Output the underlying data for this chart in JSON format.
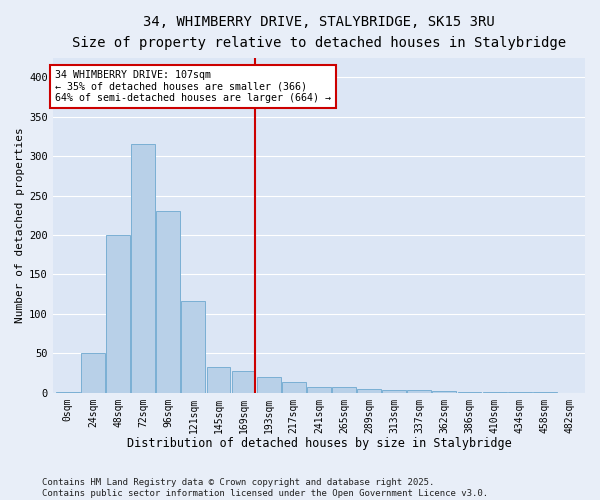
{
  "title_line1": "34, WHIMBERRY DRIVE, STALYBRIDGE, SK15 3RU",
  "title_line2": "Size of property relative to detached houses in Stalybridge",
  "xlabel": "Distribution of detached houses by size in Stalybridge",
  "ylabel": "Number of detached properties",
  "bar_color": "#b8d0e8",
  "bar_edge_color": "#7aafd4",
  "background_color": "#dce6f5",
  "grid_color": "#ffffff",
  "annotation_box_color": "#cc0000",
  "annotation_text": "34 WHIMBERRY DRIVE: 107sqm\n← 35% of detached houses are smaller (366)\n64% of semi-detached houses are larger (664) →",
  "vline_color": "#cc0000",
  "vline_x_bin": 4,
  "categories": [
    "0sqm",
    "24sqm",
    "48sqm",
    "72sqm",
    "96sqm",
    "121sqm",
    "145sqm",
    "169sqm",
    "193sqm",
    "217sqm",
    "241sqm",
    "265sqm",
    "289sqm",
    "313sqm",
    "337sqm",
    "362sqm",
    "386sqm",
    "410sqm",
    "434sqm",
    "458sqm",
    "482sqm"
  ],
  "bin_edges": [
    0,
    24,
    48,
    72,
    96,
    121,
    145,
    169,
    193,
    217,
    241,
    265,
    289,
    313,
    337,
    362,
    386,
    410,
    434,
    458,
    482,
    506
  ],
  "values": [
    1,
    51,
    200,
    315,
    230,
    116,
    32,
    28,
    20,
    13,
    7,
    7,
    5,
    4,
    3,
    2,
    1,
    1,
    1,
    1,
    0
  ],
  "ylim": [
    0,
    425
  ],
  "yticks": [
    0,
    50,
    100,
    150,
    200,
    250,
    300,
    350,
    400
  ],
  "footnote_line1": "Contains HM Land Registry data © Crown copyright and database right 2025.",
  "footnote_line2": "Contains public sector information licensed under the Open Government Licence v3.0.",
  "fig_width": 6.0,
  "fig_height": 5.0,
  "dpi": 100
}
